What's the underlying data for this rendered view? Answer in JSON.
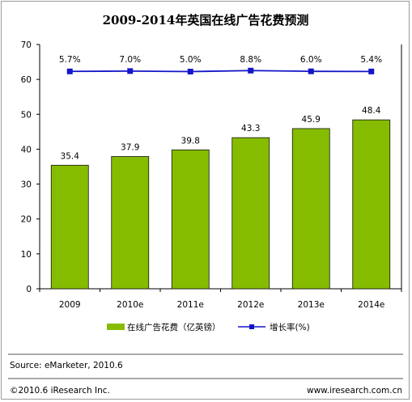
{
  "chart_data": {
    "type": "bar",
    "title": "2009-2014年英国在线广告花费预测",
    "categories": [
      "2009",
      "2010e",
      "2011e",
      "2012e",
      "2013e",
      "2014e"
    ],
    "series": [
      {
        "name": "在线广告花费（亿英镑）",
        "type": "bar",
        "color": "#86bc00",
        "values": [
          35.4,
          37.9,
          39.8,
          43.3,
          45.9,
          48.4
        ],
        "labels": [
          "35.4",
          "37.9",
          "39.8",
          "43.3",
          "45.9",
          "48.4"
        ]
      },
      {
        "name": "增长率(%)",
        "type": "line",
        "color": "#1515c8",
        "values": [
          5.7,
          7.0,
          5.0,
          8.8,
          6.0,
          5.4
        ],
        "labels": [
          "5.7%",
          "7.0%",
          "5.0%",
          "8.8%",
          "6.0%",
          "5.4%"
        ]
      }
    ],
    "ylim": [
      0,
      70
    ],
    "yticks": [
      0,
      10,
      20,
      30,
      40,
      50,
      60,
      70
    ],
    "ytick_labels": [
      "0",
      "10",
      "20",
      "30",
      "40",
      "50",
      "60",
      "70"
    ],
    "grid": false,
    "legend": "bottom",
    "xlabel": "",
    "ylabel": ""
  },
  "source": "Source: eMarketer, 2010.6",
  "copyright": "©2010.6 iResearch Inc.",
  "website": "www.iresearch.com.cn"
}
